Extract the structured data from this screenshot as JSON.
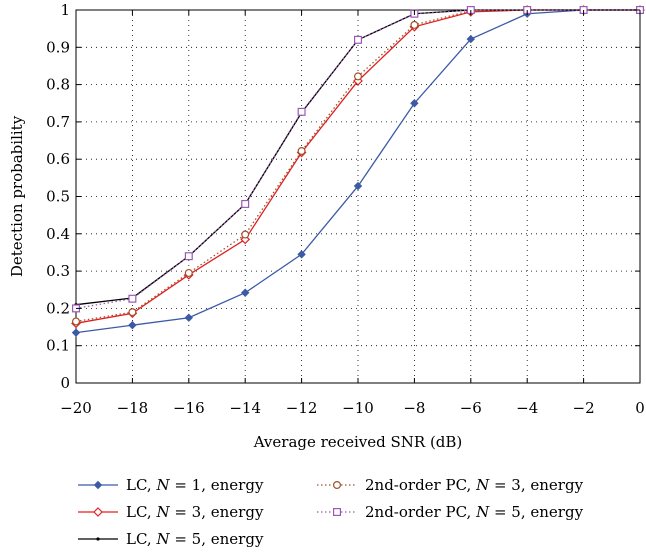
{
  "chart_data": {
    "type": "line",
    "title": "",
    "xlabel": "Average received SNR (dB)",
    "ylabel": "Detection probability",
    "xlim": [
      -20,
      0
    ],
    "ylim": [
      0,
      1
    ],
    "xticks": [
      -20,
      -18,
      -16,
      -14,
      -12,
      -10,
      -8,
      -6,
      -4,
      -2,
      0
    ],
    "xtick_labels": [
      "−20",
      "−18",
      "−16",
      "−14",
      "−12",
      "−10",
      "−8",
      "−6",
      "−4",
      "−2",
      "0"
    ],
    "yticks": [
      0,
      0.1,
      0.2,
      0.3,
      0.4,
      0.5,
      0.6,
      0.7,
      0.8,
      0.9,
      1
    ],
    "ytick_labels": [
      "0",
      "0.1",
      "0.2",
      "0.3",
      "0.4",
      "0.5",
      "0.6",
      "0.7",
      "0.8",
      "0.9",
      "1"
    ],
    "grid": true,
    "legend_position": "bottom",
    "x": [
      -20,
      -18,
      -16,
      -14,
      -12,
      -10,
      -8,
      -6,
      -4,
      -2,
      0
    ],
    "series": [
      {
        "key": "lc-n1",
        "name": "LC, N = 1, energy",
        "legend_parts": [
          "LC, ",
          "N",
          " = 1, energy"
        ],
        "color": "#3c5aa6",
        "line_style": "solid",
        "marker": "diamond-filled",
        "values": [
          0.135,
          0.155,
          0.175,
          0.242,
          0.345,
          0.528,
          0.75,
          0.922,
          0.99,
          1.0,
          1.0
        ]
      },
      {
        "key": "lc-n3",
        "name": "LC, N = 3, energy",
        "legend_parts": [
          "LC, ",
          "N",
          " = 3, energy"
        ],
        "color": "#e02020",
        "line_style": "solid",
        "marker": "diamond-open",
        "values": [
          0.16,
          0.187,
          0.29,
          0.385,
          0.618,
          0.81,
          0.955,
          0.995,
          1.0,
          1.0,
          1.0
        ]
      },
      {
        "key": "lc-n5",
        "name": "LC, N = 5, energy",
        "legend_parts": [
          "LC, ",
          "N",
          " = 5, energy"
        ],
        "color": "#000000",
        "line_style": "solid",
        "marker": "point",
        "values": [
          0.21,
          0.228,
          0.34,
          0.48,
          0.725,
          0.92,
          0.99,
          1.0,
          1.0,
          1.0,
          1.0
        ]
      },
      {
        "key": "pc-n3",
        "name": "2nd-order PC, N = 3, energy",
        "legend_parts": [
          "2nd-order PC, ",
          "N",
          " = 3, energy"
        ],
        "color": "#a0522d",
        "line_style": "dotted",
        "marker": "circle-open",
        "values": [
          0.165,
          0.19,
          0.295,
          0.398,
          0.622,
          0.822,
          0.96,
          0.998,
          1.0,
          1.0,
          1.0
        ]
      },
      {
        "key": "pc-n5",
        "name": "2nd-order PC, N = 5, energy",
        "legend_parts": [
          "2nd-order PC, ",
          "N",
          " = 5, energy"
        ],
        "color": "#9b59b6",
        "line_style": "dotted",
        "marker": "square-open",
        "values": [
          0.2,
          0.226,
          0.34,
          0.48,
          0.727,
          0.92,
          0.99,
          1.0,
          1.0,
          1.0,
          1.0
        ]
      }
    ]
  }
}
